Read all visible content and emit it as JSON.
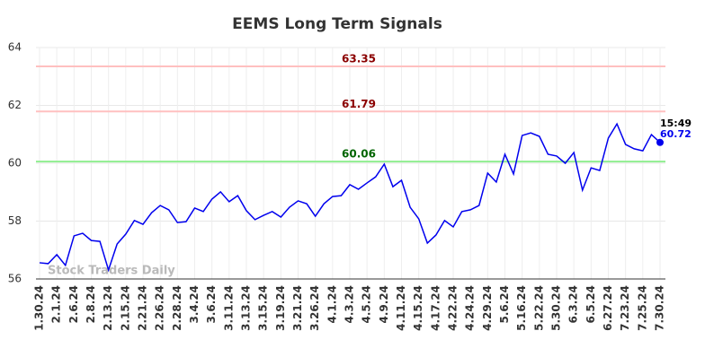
{
  "chart_data": {
    "type": "line",
    "title": "EEMS Long Term Signals",
    "categories": [
      "1.30.24",
      null,
      "2.1.24",
      null,
      "2.6.24",
      null,
      "2.8.24",
      null,
      "2.13.24",
      null,
      "2.15.24",
      null,
      "2.21.24",
      null,
      "2.26.24",
      null,
      "2.28.24",
      null,
      "3.4.24",
      null,
      "3.6.24",
      null,
      "3.11.24",
      null,
      "3.13.24",
      null,
      "3.15.24",
      null,
      "3.19.24",
      null,
      "3.21.24",
      null,
      "3.26.24",
      null,
      "4.1.24",
      null,
      "4.3.24",
      null,
      "4.5.24",
      null,
      "4.9.24",
      null,
      "4.11.24",
      null,
      "4.15.24",
      null,
      "4.17.24",
      null,
      "4.22.24",
      null,
      "4.24.24",
      null,
      "4.29.24",
      null,
      "5.6.24",
      null,
      "5.16.24",
      null,
      "5.22.24",
      null,
      "5.30.24",
      null,
      "6.3.24",
      null,
      "6.5.24",
      null,
      "6.27.24",
      null,
      "7.23.24",
      null,
      "7.25.24",
      null,
      "7.30.24"
    ],
    "values": [
      56.56,
      56.53,
      56.84,
      56.47,
      57.49,
      57.58,
      57.33,
      57.3,
      56.31,
      57.21,
      57.55,
      58.02,
      57.89,
      58.29,
      58.54,
      58.39,
      57.95,
      57.98,
      58.45,
      58.33,
      58.76,
      59.01,
      58.67,
      58.88,
      58.36,
      58.05,
      58.2,
      58.33,
      58.14,
      58.48,
      58.7,
      58.6,
      58.17,
      58.6,
      58.85,
      58.88,
      59.26,
      59.1,
      59.32,
      59.53,
      59.97,
      59.19,
      59.41,
      58.48,
      58.08,
      57.24,
      57.52,
      58.02,
      57.8,
      58.33,
      58.39,
      58.54,
      59.66,
      59.35,
      60.31,
      59.63,
      60.96,
      61.05,
      60.93,
      60.31,
      60.25,
      60.0,
      60.37,
      59.07,
      59.84,
      59.75,
      60.87,
      61.36,
      60.65,
      60.5,
      60.43,
      60.99,
      60.72
    ],
    "color": "#0000ee",
    "last_time": "15:49",
    "hlines": [
      {
        "value": 63.35,
        "color": "#ffc0c0",
        "label_color": "#8b0000"
      },
      {
        "value": 61.79,
        "color": "#ffc0c0",
        "label_color": "#8b0000"
      },
      {
        "value": 60.06,
        "color": "#90ee90",
        "label_color": "#006400"
      }
    ],
    "watermark": "Stock Traders Daily",
    "ylim": [
      56,
      64
    ],
    "yticks": [
      56,
      58,
      60,
      62,
      64
    ],
    "grid": true
  }
}
